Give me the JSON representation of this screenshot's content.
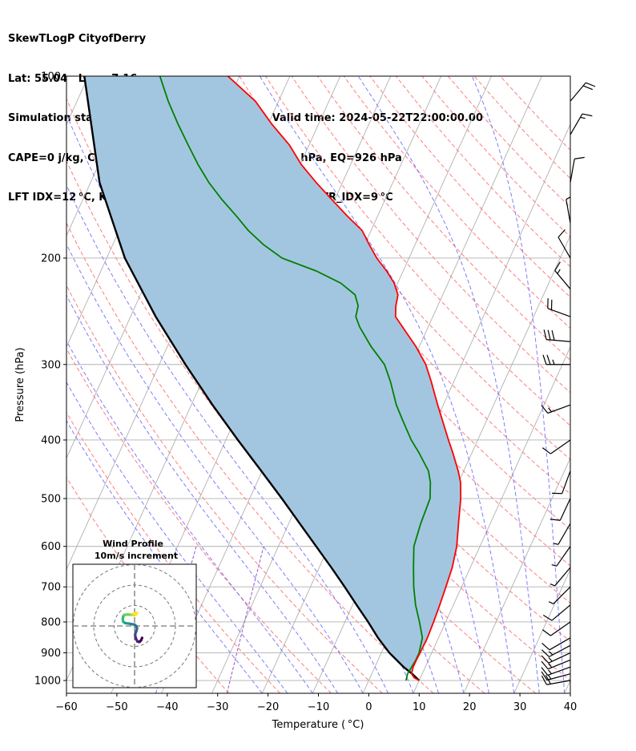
{
  "header": {
    "line1": "SkewTLogP CityofDerry",
    "line2": "Lat: 55.04   Lon: -7.16",
    "line3": "Simulation start time: 2024-05-22_00:00:00, Valid time: 2024-05-22T22:00:00.00",
    "line4": "CAPE=0 j/kg, CIN=-2 j/kg, LCL=964 hPa, LFC=959 hPa, EQ=926 hPa",
    "line5": "LFT IDX=12 °C, K IDX=17 °C, TOTAL TOTS=40 °C, SHWTR_IDX=9 °C"
  },
  "chart_data": {
    "type": "skewt",
    "xlabel": "Temperature ( °C)",
    "ylabel": "Pressure (hPa)",
    "xlim": [
      -60,
      40
    ],
    "ylim": [
      1050,
      100
    ],
    "x_ticks": [
      -60,
      -50,
      -40,
      -30,
      -20,
      -10,
      0,
      10,
      20,
      30,
      40
    ],
    "x_tick_labels": [
      "−60",
      "−50",
      "−40",
      "−30",
      "−20",
      "−10",
      "0",
      "10",
      "20",
      "30",
      "40"
    ],
    "y_ticks": [
      100,
      200,
      300,
      400,
      500,
      600,
      700,
      800,
      900,
      1000
    ],
    "y_tick_labels": [
      "100",
      "200",
      "300",
      "400",
      "500",
      "600",
      "700",
      "800",
      "900",
      "1000"
    ],
    "grid": true,
    "temperature_profile": {
      "color": "#ff0000",
      "points": [
        [
          1000,
          10
        ],
        [
          990,
          8.8
        ],
        [
          975,
          7.9
        ],
        [
          950,
          7.6
        ],
        [
          925,
          7.6
        ],
        [
          900,
          7.7
        ],
        [
          850,
          7.8
        ],
        [
          800,
          7.6
        ],
        [
          750,
          7.3
        ],
        [
          700,
          6.9
        ],
        [
          650,
          6.4
        ],
        [
          600,
          5.4
        ],
        [
          550,
          3.7
        ],
        [
          500,
          1.9
        ],
        [
          470,
          0.4
        ],
        [
          450,
          -1.1
        ],
        [
          420,
          -3.8
        ],
        [
          400,
          -5.8
        ],
        [
          370,
          -8.9
        ],
        [
          350,
          -11.1
        ],
        [
          320,
          -14.5
        ],
        [
          300,
          -17.1
        ],
        [
          280,
          -20.7
        ],
        [
          260,
          -25.1
        ],
        [
          250,
          -27.4
        ],
        [
          240,
          -28.3
        ],
        [
          230,
          -28.9
        ],
        [
          220,
          -30.7
        ],
        [
          210,
          -33.3
        ],
        [
          200,
          -36.4
        ],
        [
          190,
          -39.1
        ],
        [
          180,
          -41.8
        ],
        [
          170,
          -46.2
        ],
        [
          160,
          -50.6
        ],
        [
          150,
          -55.2
        ],
        [
          140,
          -59.8
        ],
        [
          130,
          -63.9
        ],
        [
          120,
          -69.3
        ],
        [
          110,
          -74.6
        ],
        [
          100,
          -82.3
        ]
      ]
    },
    "dewpoint_profile": {
      "color": "#008000",
      "points": [
        [
          1000,
          7.4
        ],
        [
          975,
          7.1
        ],
        [
          950,
          7.3
        ],
        [
          925,
          7.5
        ],
        [
          900,
          7.5
        ],
        [
          850,
          6.8
        ],
        [
          800,
          4.8
        ],
        [
          750,
          2.5
        ],
        [
          700,
          0.5
        ],
        [
          650,
          -1.3
        ],
        [
          600,
          -3.1
        ],
        [
          550,
          -3.8
        ],
        [
          500,
          -4.2
        ],
        [
          470,
          -5.6
        ],
        [
          450,
          -7.0
        ],
        [
          420,
          -10.5
        ],
        [
          400,
          -13.2
        ],
        [
          370,
          -16.8
        ],
        [
          350,
          -19.3
        ],
        [
          320,
          -22.6
        ],
        [
          300,
          -25.3
        ],
        [
          280,
          -29.6
        ],
        [
          260,
          -33.6
        ],
        [
          250,
          -35.3
        ],
        [
          240,
          -35.8
        ],
        [
          230,
          -37.4
        ],
        [
          220,
          -41.3
        ],
        [
          210,
          -47.3
        ],
        [
          200,
          -55.2
        ],
        [
          190,
          -60.1
        ],
        [
          180,
          -64.4
        ],
        [
          170,
          -68.2
        ],
        [
          160,
          -72.4
        ],
        [
          150,
          -76.5
        ],
        [
          140,
          -80.3
        ],
        [
          130,
          -84.0
        ],
        [
          120,
          -87.9
        ],
        [
          110,
          -91.9
        ],
        [
          100,
          -95.8
        ]
      ]
    },
    "parcel_profile": {
      "color": "#000000",
      "points": [
        [
          1000,
          10
        ],
        [
          975,
          8.0
        ],
        [
          950,
          5.7
        ],
        [
          900,
          1.6
        ],
        [
          850,
          -2.0
        ],
        [
          800,
          -5.4
        ],
        [
          750,
          -9.2
        ],
        [
          700,
          -13.2
        ],
        [
          650,
          -17.6
        ],
        [
          600,
          -22.5
        ],
        [
          550,
          -27.8
        ],
        [
          500,
          -33.6
        ],
        [
          450,
          -40.2
        ],
        [
          400,
          -47.6
        ],
        [
          350,
          -55.8
        ],
        [
          300,
          -64.8
        ],
        [
          250,
          -75.0
        ],
        [
          200,
          -86.4
        ],
        [
          150,
          -98.2
        ],
        [
          100,
          -110.8
        ]
      ]
    },
    "shaded_area_color": "#a3c6e0",
    "isotherms_color": "#b0b0b0",
    "dry_adiabats_color": "#ff6666",
    "moist_adiabats_color": "#6666ff",
    "mixing_ratio_color": "#9955cc",
    "wind_barbs": [
      [
        1000,
        260,
        18
      ],
      [
        975,
        255,
        17
      ],
      [
        950,
        250,
        16
      ],
      [
        925,
        248,
        15
      ],
      [
        900,
        245,
        14
      ],
      [
        875,
        242,
        13
      ],
      [
        850,
        240,
        12
      ],
      [
        800,
        235,
        10
      ],
      [
        750,
        230,
        8
      ],
      [
        700,
        225,
        7
      ],
      [
        650,
        220,
        6
      ],
      [
        600,
        215,
        6
      ],
      [
        550,
        210,
        7
      ],
      [
        500,
        205,
        8
      ],
      [
        450,
        200,
        8
      ],
      [
        400,
        235,
        12
      ],
      [
        350,
        250,
        16
      ],
      [
        300,
        270,
        25
      ],
      [
        275,
        275,
        28
      ],
      [
        250,
        290,
        22
      ],
      [
        225,
        320,
        17
      ],
      [
        200,
        330,
        12
      ],
      [
        175,
        350,
        5
      ],
      [
        150,
        10,
        10
      ],
      [
        125,
        30,
        16
      ],
      [
        110,
        40,
        22
      ]
    ],
    "hodograph": {
      "title": "Wind Profile",
      "subtitle": "10m/s increment",
      "rings_ms": [
        10,
        20,
        30
      ],
      "colormap": "viridis",
      "points": [
        [
          3.7,
          -5.8
        ],
        [
          3.2,
          -7.0
        ],
        [
          2.4,
          -7.8
        ],
        [
          1.4,
          -7.6
        ],
        [
          0.7,
          -6.2
        ],
        [
          0.3,
          -4.7
        ],
        [
          0.4,
          -3.5
        ],
        [
          0.9,
          -2.5
        ],
        [
          1.2,
          -1.2
        ],
        [
          0.9,
          -0.2
        ],
        [
          0.1,
          0.6
        ],
        [
          -1.4,
          0.9
        ],
        [
          -3.0,
          1.2
        ],
        [
          -4.6,
          1.4
        ],
        [
          -5.6,
          2.1
        ],
        [
          -5.8,
          3.4
        ],
        [
          -5.5,
          4.8
        ],
        [
          -5.1,
          5.4
        ],
        [
          -3.4,
          5.6
        ],
        [
          -1.4,
          5.5
        ],
        [
          -0.2,
          5.4
        ],
        [
          0.8,
          5.6
        ],
        [
          -0.5,
          6.0
        ],
        [
          1.2,
          6.5
        ]
      ]
    }
  }
}
